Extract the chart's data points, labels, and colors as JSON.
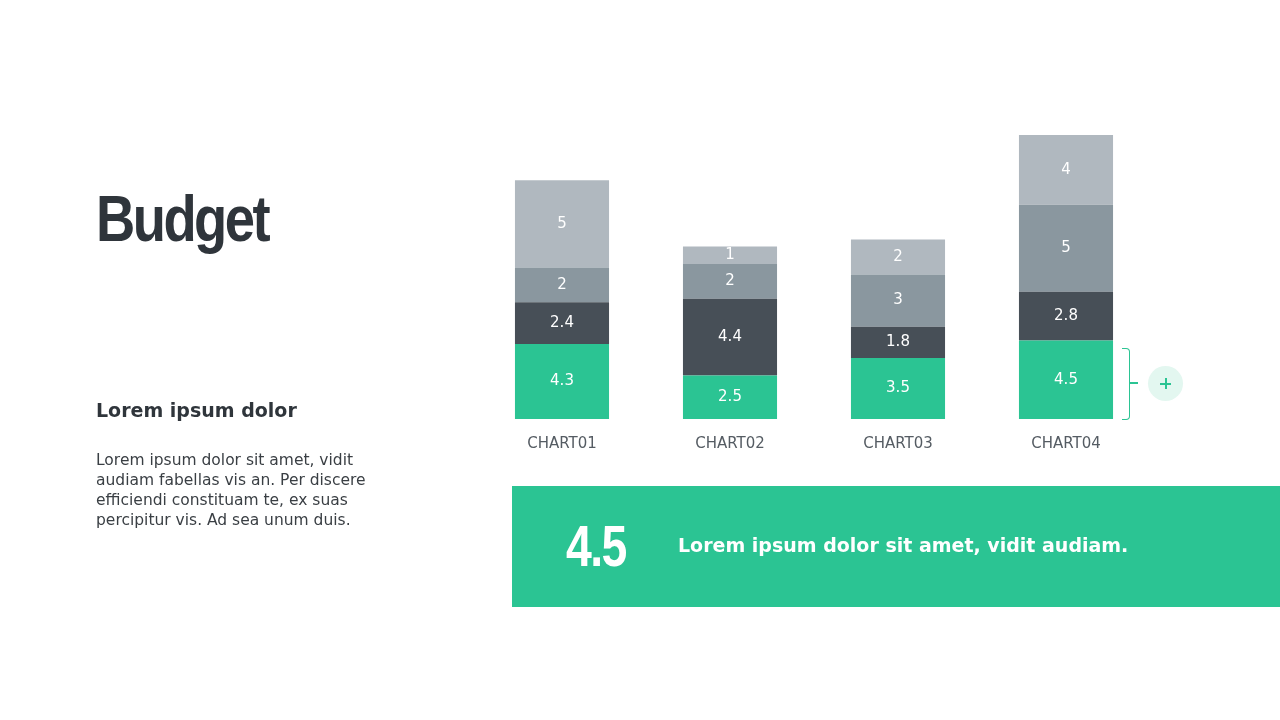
{
  "chart_data": {
    "type": "bar",
    "title": "Budget",
    "subtitle": "Lorem ipsum dolor",
    "annotations": [
      "Lorem ipsum dolor sit amet, vidit audiam fabellas vis an. Per discere efficiendi constituam te, ex suas percipitur vis. Ad sea unum duis.",
      "4.5",
      "Lorem ipsum dolor sit amet, vidit audiam."
    ],
    "categories": [
      "CHART01",
      "CHART02",
      "CHART03",
      "CHART04"
    ],
    "stacked": true,
    "data_labels": true,
    "legend": false,
    "grid": false,
    "tick_labels": "x",
    "series": [
      {
        "color": "#2bc493",
        "values": [
          4.3,
          2.5,
          3.5,
          4.5
        ]
      },
      {
        "color": "#474f57",
        "values": [
          2.4,
          4.4,
          1.8,
          2.8
        ]
      },
      {
        "color": "#8a979f",
        "values": [
          2,
          2,
          3,
          5
        ]
      },
      {
        "color": "#b0b8bf",
        "values": [
          5,
          1,
          2,
          4
        ]
      }
    ]
  }
}
